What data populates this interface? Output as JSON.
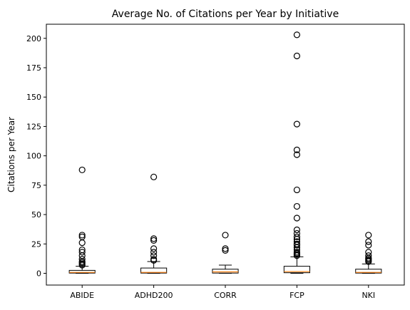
{
  "chart_data": {
    "type": "box",
    "title": "Average No. of Citations per Year by Initiative",
    "xlabel": "",
    "ylabel": "Citations per Year",
    "ylim": [
      -10,
      212
    ],
    "yticks": [
      0,
      25,
      50,
      75,
      100,
      125,
      150,
      175,
      200
    ],
    "grid": false,
    "categories": [
      "ABIDE",
      "ADHD200",
      "CORR",
      "FCP",
      "NKI"
    ],
    "boxes": [
      {
        "category": "ABIDE",
        "q1": 0.2,
        "median": 0.8,
        "q3": 2.5,
        "whisker_low": 0,
        "whisker_high": 6,
        "outliers": [
          88,
          32.5,
          31,
          26,
          20,
          18,
          15,
          12,
          10,
          9,
          8,
          7
        ]
      },
      {
        "category": "ADHD200",
        "q1": 0.2,
        "median": 0.8,
        "q3": 4.5,
        "whisker_low": 0,
        "whisker_high": 10,
        "outliers": [
          82,
          29.5,
          28,
          21,
          18,
          15,
          12,
          11
        ]
      },
      {
        "category": "CORR",
        "q1": 0.2,
        "median": 1.2,
        "q3": 3.5,
        "whisker_low": 0,
        "whisker_high": 7,
        "outliers": [
          32.5,
          21,
          19.5
        ]
      },
      {
        "category": "FCP",
        "q1": 0.5,
        "median": 1.5,
        "q3": 6,
        "whisker_low": 0,
        "whisker_high": 14,
        "outliers": [
          203,
          185,
          127,
          105,
          101,
          71,
          57,
          47,
          37,
          34,
          31,
          29,
          27,
          25,
          24,
          22,
          20,
          18,
          17,
          16,
          15
        ]
      },
      {
        "category": "NKI",
        "q1": 0.2,
        "median": 0.8,
        "q3": 3.5,
        "whisker_low": 0,
        "whisker_high": 8,
        "outliers": [
          32.5,
          27,
          24,
          18,
          15,
          13,
          12,
          11,
          10
        ]
      }
    ],
    "colors": {
      "box": "#000000",
      "median": "#ff7f0e",
      "outlier": "#000000",
      "background": "#ffffff"
    }
  }
}
